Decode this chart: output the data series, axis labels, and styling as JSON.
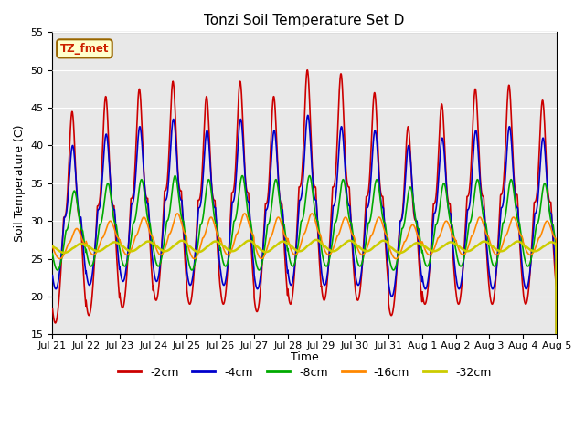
{
  "title": "Tonzi Soil Temperature Set D",
  "xlabel": "Time",
  "ylabel": "Soil Temperature (C)",
  "ylim": [
    15,
    55
  ],
  "yticks": [
    15,
    20,
    25,
    30,
    35,
    40,
    45,
    50,
    55
  ],
  "annotation": "TZ_fmet",
  "background_color": "#e8e8e8",
  "legend_entries": [
    "-2cm",
    "-4cm",
    "-8cm",
    "-16cm",
    "-32cm"
  ],
  "line_colors": [
    "#cc0000",
    "#0000cc",
    "#00aa00",
    "#ff8800",
    "#cccc00"
  ],
  "line_widths": [
    1.2,
    1.2,
    1.2,
    1.2,
    1.8
  ],
  "date_labels": [
    "Jul 21",
    "Jul 22",
    "Jul 23",
    "Jul 24",
    "Jul 25",
    "Jul 26",
    "Jul 27",
    "Jul 28",
    "Jul 29",
    "Jul 30",
    "Jul 31",
    "Aug 1",
    "Aug 2",
    "Aug 3",
    "Aug 4",
    "Aug 5"
  ]
}
